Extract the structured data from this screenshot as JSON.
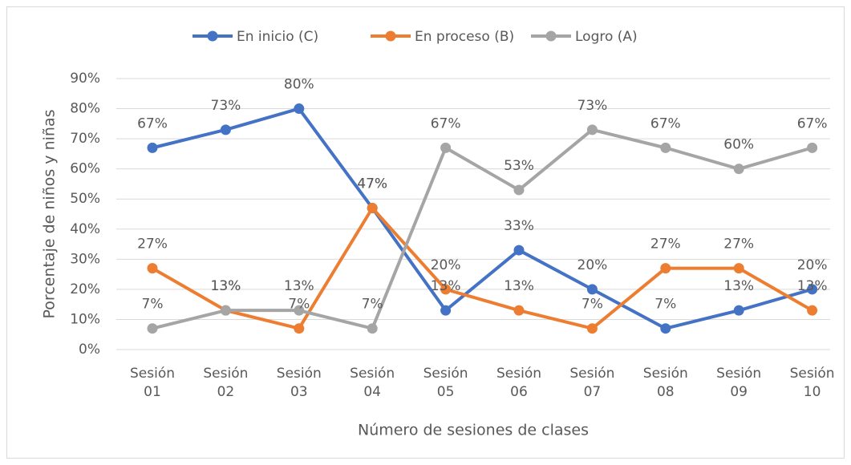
{
  "chart_data": {
    "type": "line",
    "x_label": "Número de sesiones de clases",
    "y_label": "Porcentaje de niños y niñas",
    "categories": [
      "Sesión 01",
      "Sesión 02",
      "Sesión 03",
      "Sesión 04",
      "Sesión 05",
      "Sesión 06",
      "Sesión 07",
      "Sesión 08",
      "Sesión 09",
      "Sesión 10"
    ],
    "series": [
      {
        "name": "En inicio (C)",
        "color": "#4472c4",
        "values": [
          67,
          73,
          80,
          47,
          13,
          33,
          20,
          7,
          13,
          20
        ],
        "value_labels": [
          "67%",
          "73%",
          "80%",
          "47%",
          "13%",
          "33%",
          "20%",
          "7%",
          "13%",
          "20%"
        ]
      },
      {
        "name": "En proceso (B)",
        "color": "#ed7d31",
        "values": [
          27,
          13,
          7,
          47,
          20,
          13,
          7,
          27,
          27,
          13
        ],
        "value_labels": [
          "27%",
          "13%",
          "7%",
          "47%",
          "20%",
          "13%",
          "7%",
          "27%",
          "27%",
          "13%"
        ]
      },
      {
        "name": "Logro (A)",
        "color": "#a5a5a5",
        "values": [
          7,
          13,
          13,
          7,
          67,
          53,
          73,
          67,
          60,
          67
        ],
        "value_labels": [
          "7%",
          "13%",
          "13%",
          "7%",
          "67%",
          "53%",
          "73%",
          "67%",
          "60%",
          "67%"
        ]
      }
    ],
    "ylim": [
      0,
      90
    ],
    "yticks": [
      {
        "value": 0,
        "label": "0%"
      },
      {
        "value": 10,
        "label": "10%"
      },
      {
        "value": 20,
        "label": "20%"
      },
      {
        "value": 30,
        "label": "30%"
      },
      {
        "value": 40,
        "label": "40%"
      },
      {
        "value": 50,
        "label": "50%"
      },
      {
        "value": 60,
        "label": "60%"
      },
      {
        "value": 70,
        "label": "70%"
      },
      {
        "value": 80,
        "label": "80%"
      },
      {
        "value": 90,
        "label": "90%"
      }
    ],
    "grid": true,
    "legend": "top"
  }
}
